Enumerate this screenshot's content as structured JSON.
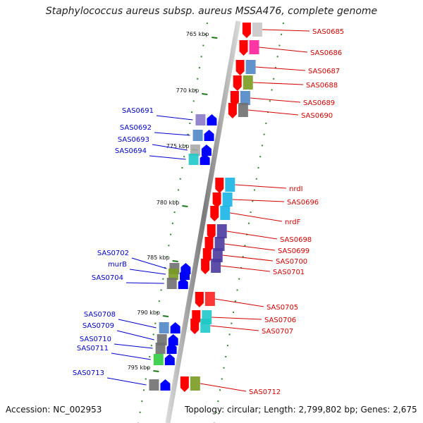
{
  "title": "Staphylococcus aureus subsp. aureus MSSA476, complete genome",
  "footer": {
    "accession": "Accession: NC_002953",
    "stats": "Topology: circular; Length: 2,799,802 bp; Genes: 2,675"
  },
  "colors": {
    "forward_label": "#d40000",
    "reverse_label": "#0000cc",
    "forward_arrow": "#ff0000",
    "reverse_arrow": "#0000ff",
    "tick": "#1a7a1a"
  },
  "kbp_ticks": [
    "765 kbp",
    "770 kbp",
    "775 kbp",
    "780 kbp",
    "785 kbp",
    "790 kbp",
    "795 kbp"
  ],
  "forward_genes": [
    "SAS0685",
    "SAS0686",
    "SAS0687",
    "SAS0688",
    "SAS0689",
    "SAS0690",
    "nrdI",
    "SAS0696",
    "nrdF",
    "SAS0698",
    "SAS0699",
    "SAS0700",
    "SAS0701",
    "SAS0705",
    "SAS0706",
    "SAS0707",
    "SAS0712"
  ],
  "reverse_genes": [
    "SAS0691",
    "SAS0692",
    "SAS0693",
    "SAS0694",
    "SAS0702",
    "murB",
    "SAS0704",
    "SAS0708",
    "SAS0709",
    "SAS0710",
    "SAS0711",
    "SAS0713"
  ]
}
